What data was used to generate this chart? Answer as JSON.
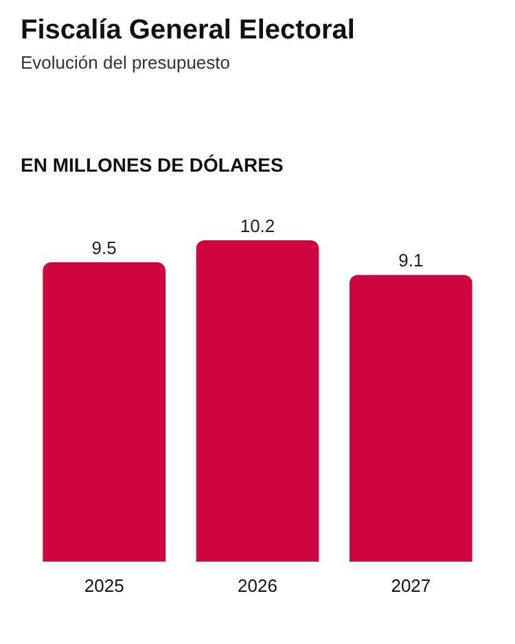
{
  "chart_data": {
    "type": "bar",
    "title": "Fiscalía General Electoral",
    "subtitle": "Evolución del presupuesto",
    "ylabel": "EN MILLONES DE DÓLARES",
    "categories": [
      "2025",
      "2026",
      "2027"
    ],
    "values": [
      9.5,
      10.2,
      9.1
    ],
    "color": "#d0053f",
    "data_labels": true
  }
}
